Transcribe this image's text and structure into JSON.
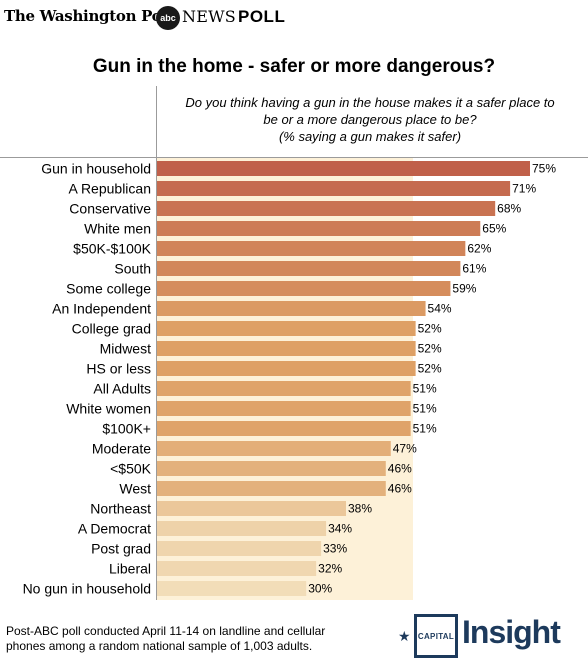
{
  "header": {
    "wapo_logo": "The Washington Post",
    "abc_logo": "abc",
    "abc_news": "NEWS",
    "poll": "POLL"
  },
  "title": "Gun in the home - safer or more dangerous?",
  "question_lines": [
    "Do you think having a gun in the house makes it a safer place to",
    "be or a more dangerous place to be?",
    "(% saying a gun makes it safer)"
  ],
  "footer": {
    "note_lines": [
      "Post-ABC poll conducted April 11-14 on landline and cellular",
      "phones among a random national sample of 1,003 adults."
    ],
    "brand_star": "★",
    "brand_capital": "CAPITAL",
    "brand_insight": "Insight"
  },
  "colors": {
    "bar_high": "#c0604a",
    "bar_mid": "#dea065",
    "bar_low": "#f2ddb8",
    "background_band": "#fdf1d8",
    "brand": "#1d3a5c"
  },
  "chart_data": {
    "type": "bar",
    "orientation": "horizontal",
    "categories": [
      "Gun in household",
      "A Republican",
      "Conservative",
      "White men",
      "$50K-$100K",
      "South",
      "Some college",
      "An Independent",
      "College grad",
      "Midwest",
      "HS or less",
      "All Adults",
      "White women",
      "$100K+",
      "Moderate",
      "<$50K",
      "West",
      "Northeast",
      "A Democrat",
      "Post grad",
      "Liberal",
      "No gun in household"
    ],
    "values": [
      75,
      71,
      68,
      65,
      62,
      61,
      59,
      54,
      52,
      52,
      52,
      51,
      51,
      51,
      47,
      46,
      46,
      38,
      34,
      33,
      32,
      30
    ],
    "labels": [
      "75%",
      "71%",
      "68%",
      "65%",
      "62%",
      "61%",
      "59%",
      "54%",
      "52%",
      "52%",
      "52%",
      "51%",
      "51%",
      "51%",
      "47%",
      "46%",
      "46%",
      "38%",
      "34%",
      "33%",
      "32%",
      "30%"
    ],
    "xlim": [
      0,
      100
    ],
    "grid": false,
    "legend": "none"
  }
}
